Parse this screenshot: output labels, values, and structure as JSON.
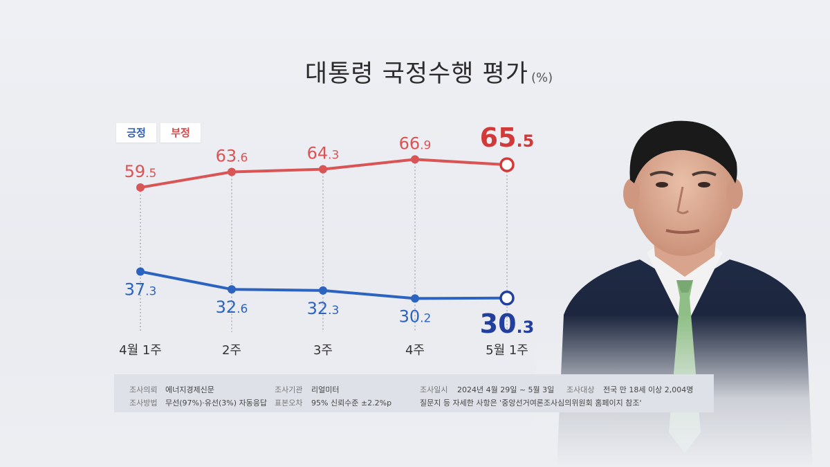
{
  "title": "대통령 국정수행 평가",
  "unit": "(%)",
  "legend": {
    "positive": "긍정",
    "negative": "부정"
  },
  "colors": {
    "positive": "#2d63c0",
    "negative": "#d95454",
    "positive_latest": "#233f9e",
    "negative_latest": "#d23a3a"
  },
  "chart_data": {
    "type": "line",
    "title": "대통령 국정수행 평가",
    "unit": "(%)",
    "categories": [
      "4월 1주",
      "2주",
      "3주",
      "4주",
      "5월 1주"
    ],
    "series": [
      {
        "name": "부정",
        "values": [
          59.5,
          63.6,
          64.3,
          66.9,
          65.5
        ]
      },
      {
        "name": "긍정",
        "values": [
          37.3,
          32.6,
          32.3,
          30.2,
          30.3
        ]
      }
    ],
    "ylim": [
      20,
      75
    ],
    "grid": false,
    "legend": "top-left"
  },
  "survey": {
    "client_label": "조사의뢰",
    "client": "에너지경제신문",
    "agency_label": "조사기관",
    "agency": "리얼미터",
    "period_label": "조사일시",
    "period": "2024년 4월 29일 ~ 5월 3일",
    "target_label": "조사대상",
    "target": "전국 만 18세 이상 2,004명",
    "method_label": "조사방법",
    "method": "무선(97%)·유선(3%) 자동응답",
    "error_label": "표본오차",
    "error": "95% 신뢰수준 ±2.2%p",
    "note": "질문지 등 자세한 사항은 '중앙선거여론조사심의위원회 홈페이지 참조'"
  }
}
